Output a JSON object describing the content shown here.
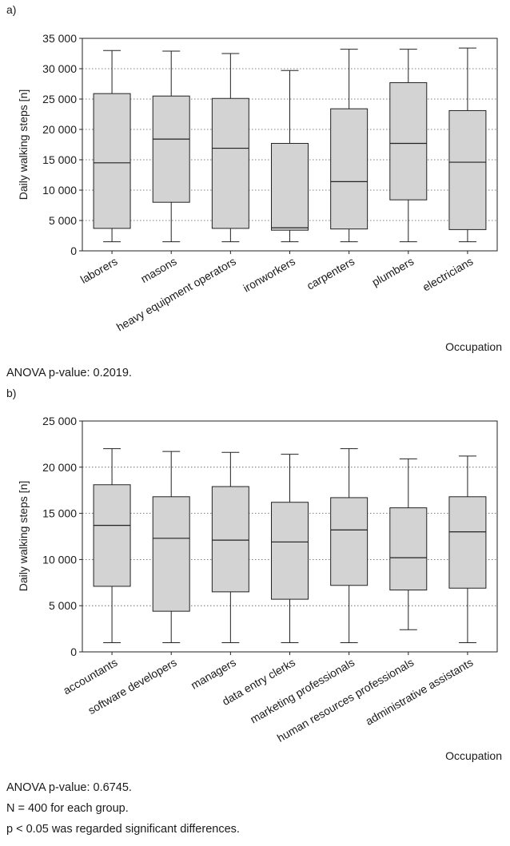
{
  "panels": [
    {
      "label": "a)",
      "anova": "ANOVA p-value: 0.2019."
    },
    {
      "label": "b)",
      "anova": "ANOVA p-value: 0.6745."
    }
  ],
  "notes": [
    "N = 400 for each group.",
    "p < 0.05 was regarded significant differences."
  ],
  "colors": {
    "box_fill": "#d3d3d3",
    "stroke": "#222222",
    "grid": "#555555"
  },
  "chart_data": [
    {
      "type": "box",
      "title": "",
      "xlabel": "Occupation",
      "ylabel": "Daily walking steps [n]",
      "ylim": [
        0,
        35000
      ],
      "yticks": [
        0,
        5000,
        10000,
        15000,
        20000,
        25000,
        30000,
        35000
      ],
      "ytick_labels": [
        "0",
        "5 000",
        "10 000",
        "15 000",
        "20 000",
        "25 000",
        "30 000",
        "35 000"
      ],
      "grid": "horizontal dotted",
      "categories": [
        "laborers",
        "masons",
        "heavy equipment operators",
        "ironworkers",
        "carpenters",
        "plumbers",
        "electricians"
      ],
      "boxes": [
        {
          "min": 1500,
          "q1": 3700,
          "median": 14500,
          "q3": 25900,
          "max": 33000
        },
        {
          "min": 1500,
          "q1": 8000,
          "median": 18400,
          "q3": 25500,
          "max": 32900
        },
        {
          "min": 1500,
          "q1": 3700,
          "median": 16900,
          "q3": 25100,
          "max": 32500
        },
        {
          "min": 1500,
          "q1": 3400,
          "median": 3800,
          "q3": 17700,
          "max": 29700
        },
        {
          "min": 1500,
          "q1": 3600,
          "median": 11400,
          "q3": 23400,
          "max": 33200
        },
        {
          "min": 1500,
          "q1": 8400,
          "median": 17700,
          "q3": 27700,
          "max": 33200
        },
        {
          "min": 1500,
          "q1": 3500,
          "median": 14600,
          "q3": 23100,
          "max": 33400
        }
      ]
    },
    {
      "type": "box",
      "title": "",
      "xlabel": "Occupation",
      "ylabel": "Daily walking steps [n]",
      "ylim": [
        0,
        25000
      ],
      "yticks": [
        0,
        5000,
        10000,
        15000,
        20000,
        25000
      ],
      "ytick_labels": [
        "0",
        "5 000",
        "10 000",
        "15 000",
        "20 000",
        "25 000"
      ],
      "grid": "horizontal dotted",
      "categories": [
        "accountants",
        "software developers",
        "managers",
        "data entry clerks",
        "marketing professionals",
        "human resources professionals",
        "administrative assistants"
      ],
      "boxes": [
        {
          "min": 1000,
          "q1": 7100,
          "median": 13700,
          "q3": 18100,
          "max": 22000
        },
        {
          "min": 1000,
          "q1": 4400,
          "median": 12300,
          "q3": 16800,
          "max": 21700
        },
        {
          "min": 1000,
          "q1": 6500,
          "median": 12100,
          "q3": 17900,
          "max": 21600
        },
        {
          "min": 1000,
          "q1": 5700,
          "median": 11900,
          "q3": 16200,
          "max": 21400
        },
        {
          "min": 1000,
          "q1": 7200,
          "median": 13200,
          "q3": 16700,
          "max": 22000
        },
        {
          "min": 2400,
          "q1": 6700,
          "median": 10200,
          "q3": 15600,
          "max": 20900
        },
        {
          "min": 1000,
          "q1": 6900,
          "median": 13000,
          "q3": 16800,
          "max": 21200
        }
      ]
    }
  ]
}
